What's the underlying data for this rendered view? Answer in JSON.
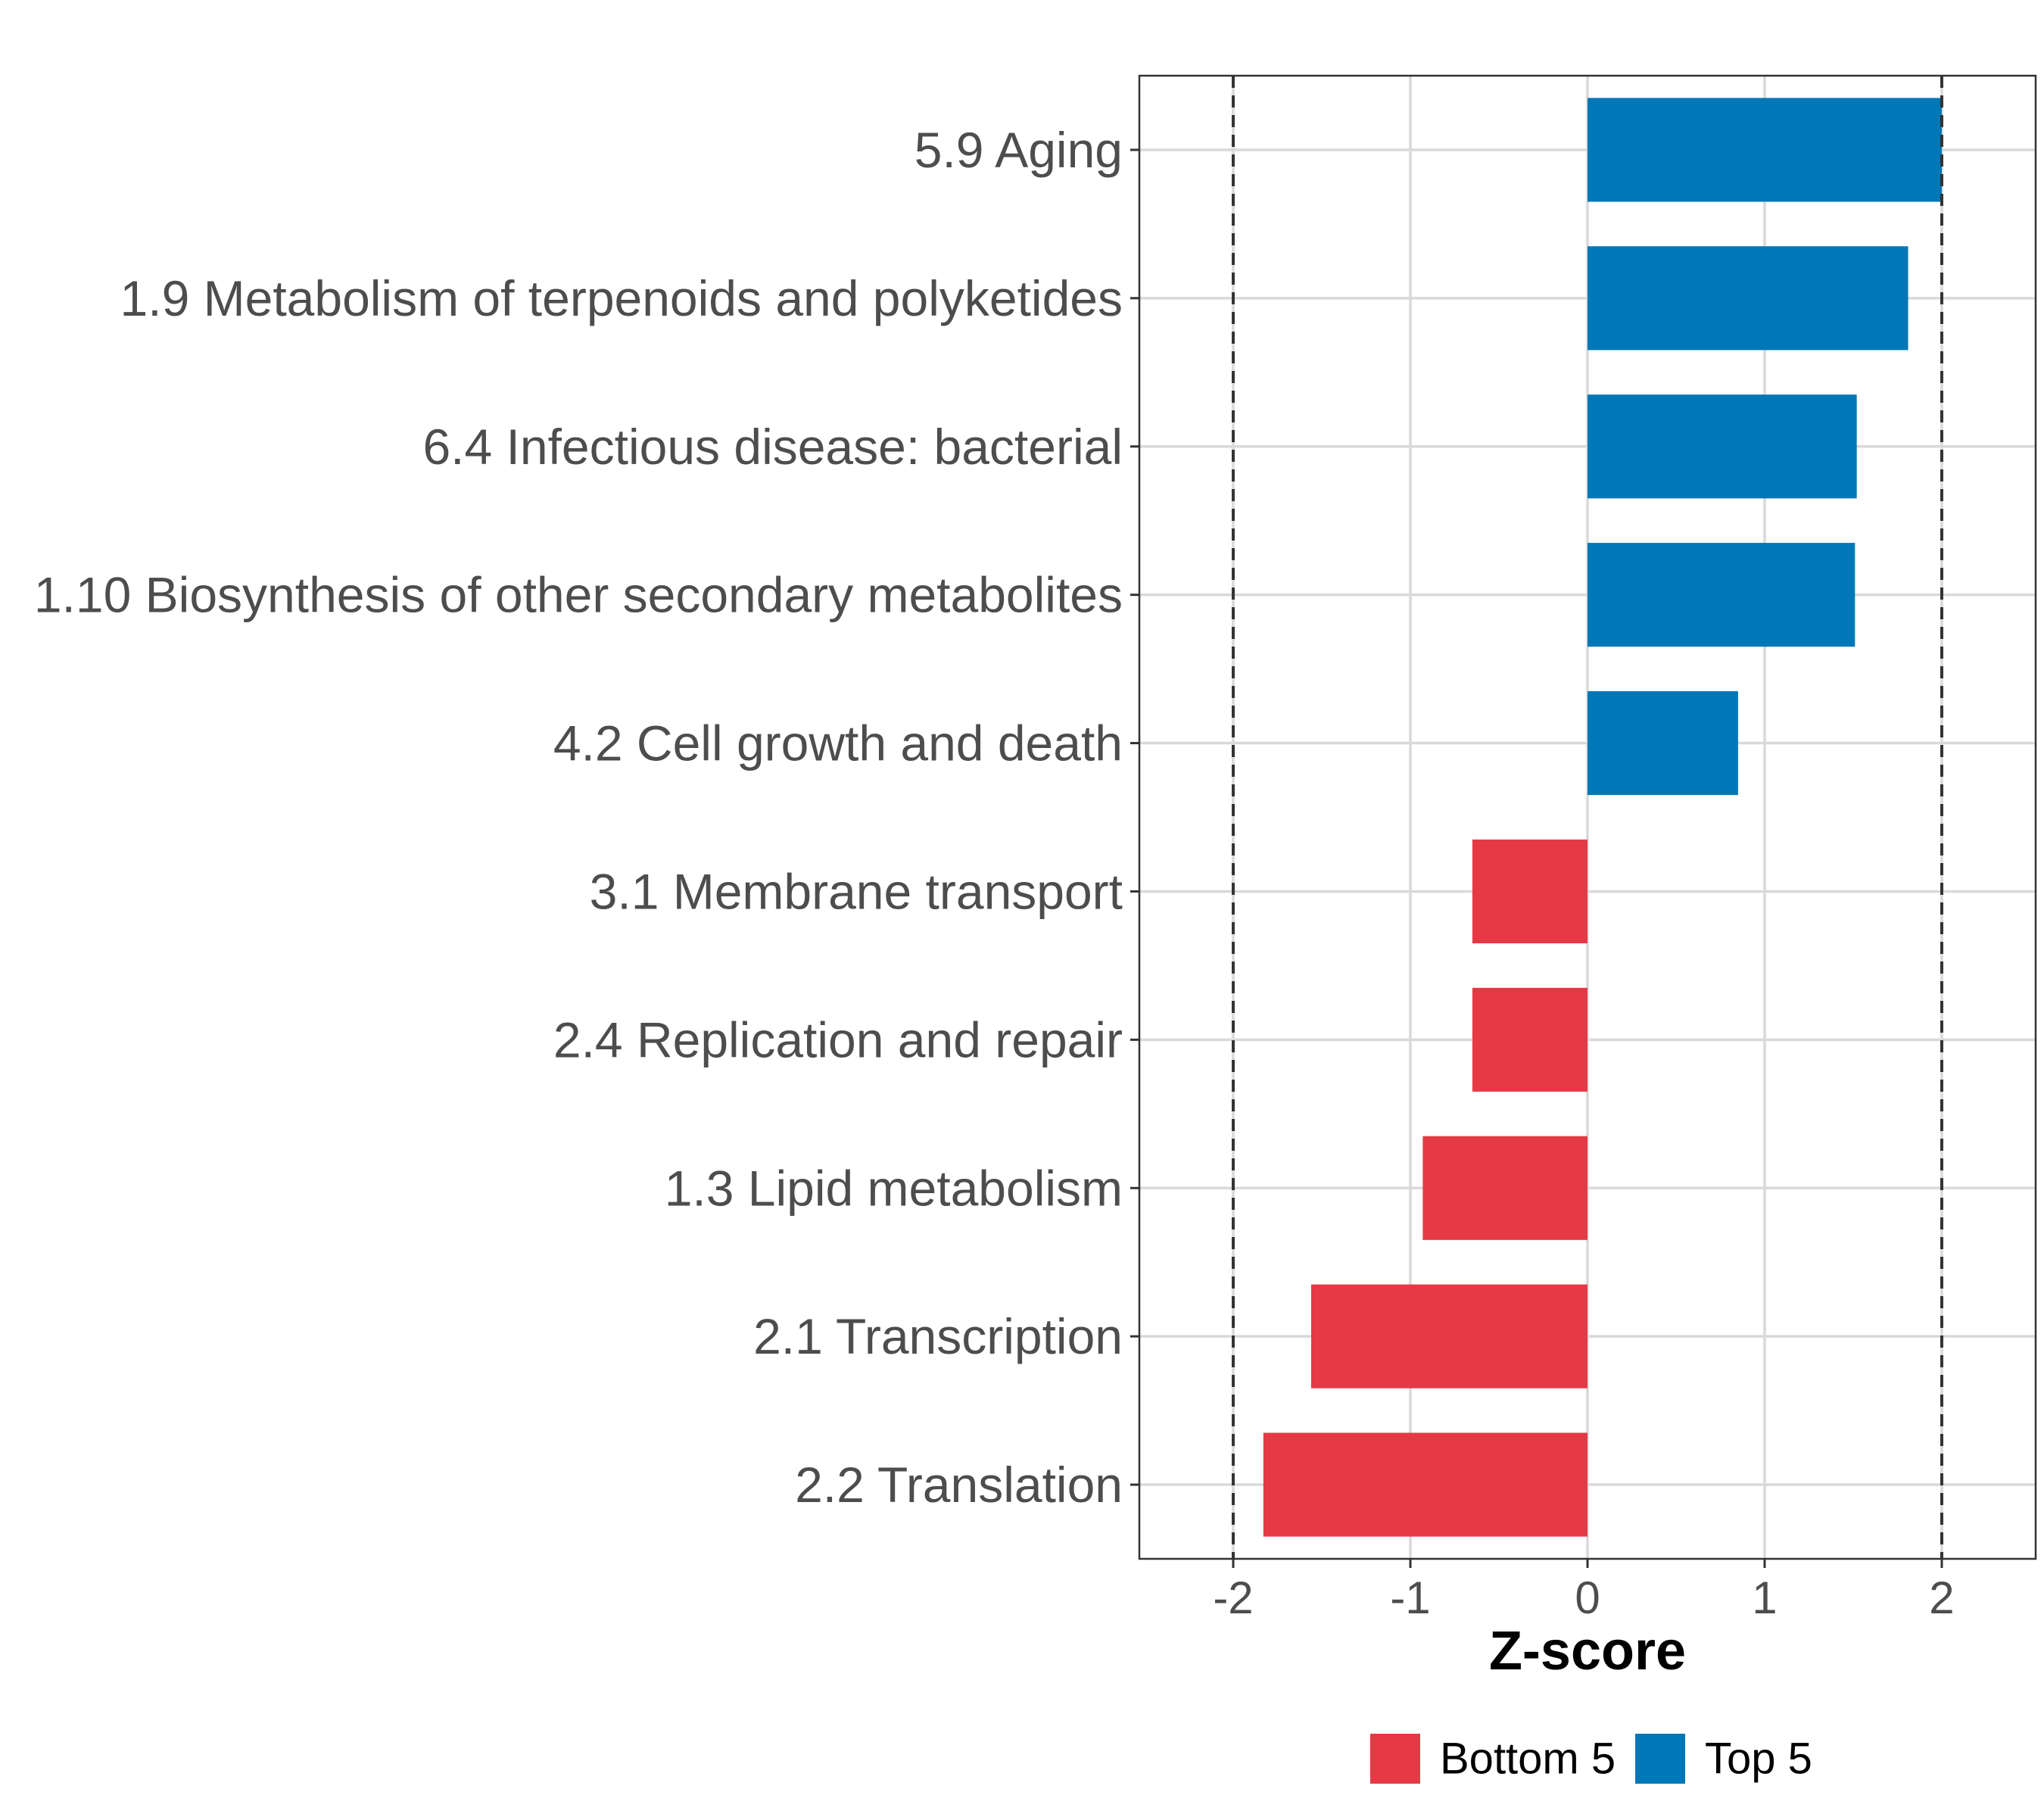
{
  "chart_data": {
    "type": "bar",
    "orientation": "horizontal",
    "categories": [
      "5.9 Aging",
      "1.9 Metabolism of terpenoids and polyketides",
      "6.4 Infectious disease: bacterial",
      "1.10 Biosynthesis of other secondary metabolites",
      "4.2 Cell growth and death",
      "3.1 Membrane transport",
      "2.4 Replication and repair",
      "1.3 Lipid metabolism",
      "2.1 Transcription",
      "2.2 Translation"
    ],
    "values": [
      2.0,
      1.81,
      1.52,
      1.51,
      0.85,
      -0.65,
      -0.65,
      -0.93,
      -1.56,
      -1.83
    ],
    "groups": [
      "Top 5",
      "Top 5",
      "Top 5",
      "Top 5",
      "Top 5",
      "Bottom 5",
      "Bottom 5",
      "Bottom 5",
      "Bottom 5",
      "Bottom 5"
    ],
    "xlabel": "Z-score",
    "ylabel": "",
    "xlim": [
      -2.53,
      2.53
    ],
    "xticks": [
      "-2",
      "-1",
      "0",
      "1",
      "2"
    ],
    "reference_lines": [
      -2,
      2
    ],
    "grid": true,
    "legend": {
      "position": "bottom",
      "items": [
        {
          "label": "Bottom 5",
          "color": "#e63946"
        },
        {
          "label": "Top 5",
          "color": "#0077b6"
        }
      ]
    },
    "colors": {
      "Top 5": "#0077b6",
      "Bottom 5": "#e63946"
    }
  }
}
